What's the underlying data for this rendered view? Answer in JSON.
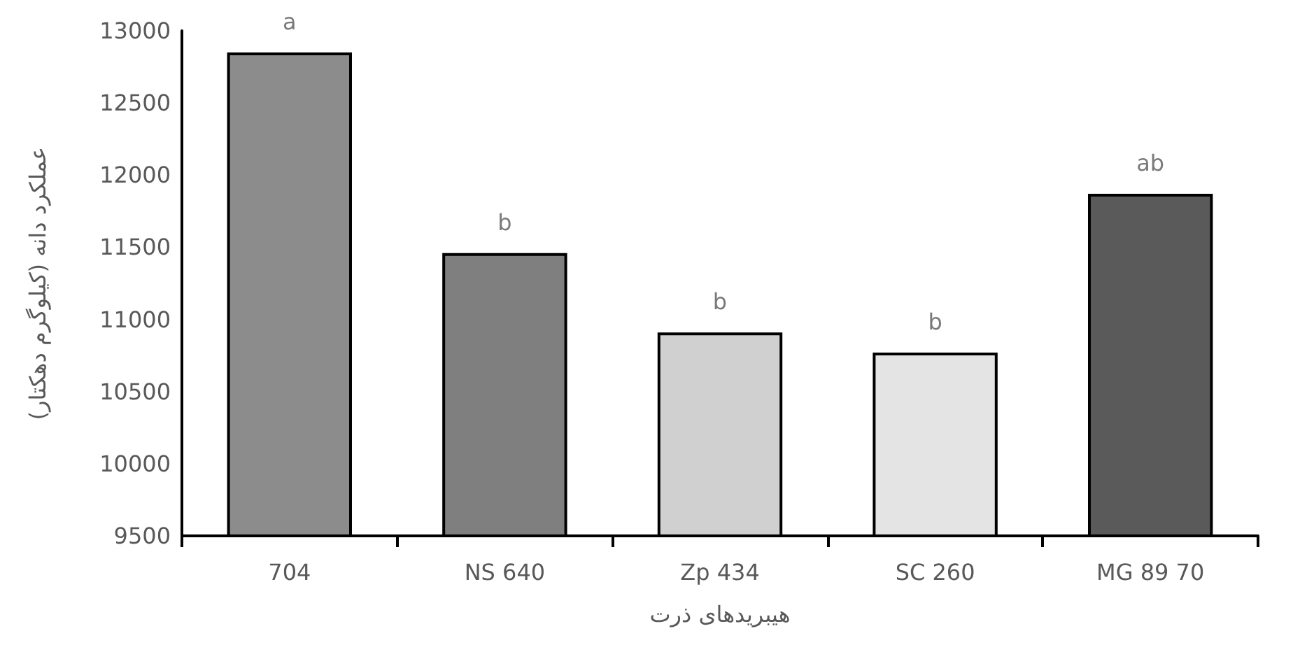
{
  "chart_data": {
    "type": "bar",
    "xlabel": "هیبریدهای ذرت",
    "ylabel": "عملکرد دانه (کیلوگرم دهکتار)",
    "categories": [
      "704",
      "NS 640",
      "Zp 434",
      "SC 260",
      "MG 89 70"
    ],
    "values": [
      12850,
      11460,
      10910,
      10770,
      11870
    ],
    "colors": [
      "#8c8c8c",
      "#7f7f7f",
      "#d0d0d0",
      "#e4e4e4",
      "#5a5a5a"
    ],
    "ylim": [
      9500,
      13000
    ],
    "yticks": [
      9500,
      10000,
      10500,
      11000,
      11500,
      12000,
      12500,
      13000
    ],
    "grid": false,
    "annotations": [
      {
        "text": "a",
        "x": "704",
        "y": 12850
      },
      {
        "text": "b",
        "x": "NS 640",
        "y": 11460
      },
      {
        "text": "b",
        "x": "Zp 434",
        "y": 10910
      },
      {
        "text": "b",
        "x": "SC 260",
        "y": 10770
      },
      {
        "text": "ab",
        "x": "MG 89 70",
        "y": 11870
      }
    ]
  }
}
